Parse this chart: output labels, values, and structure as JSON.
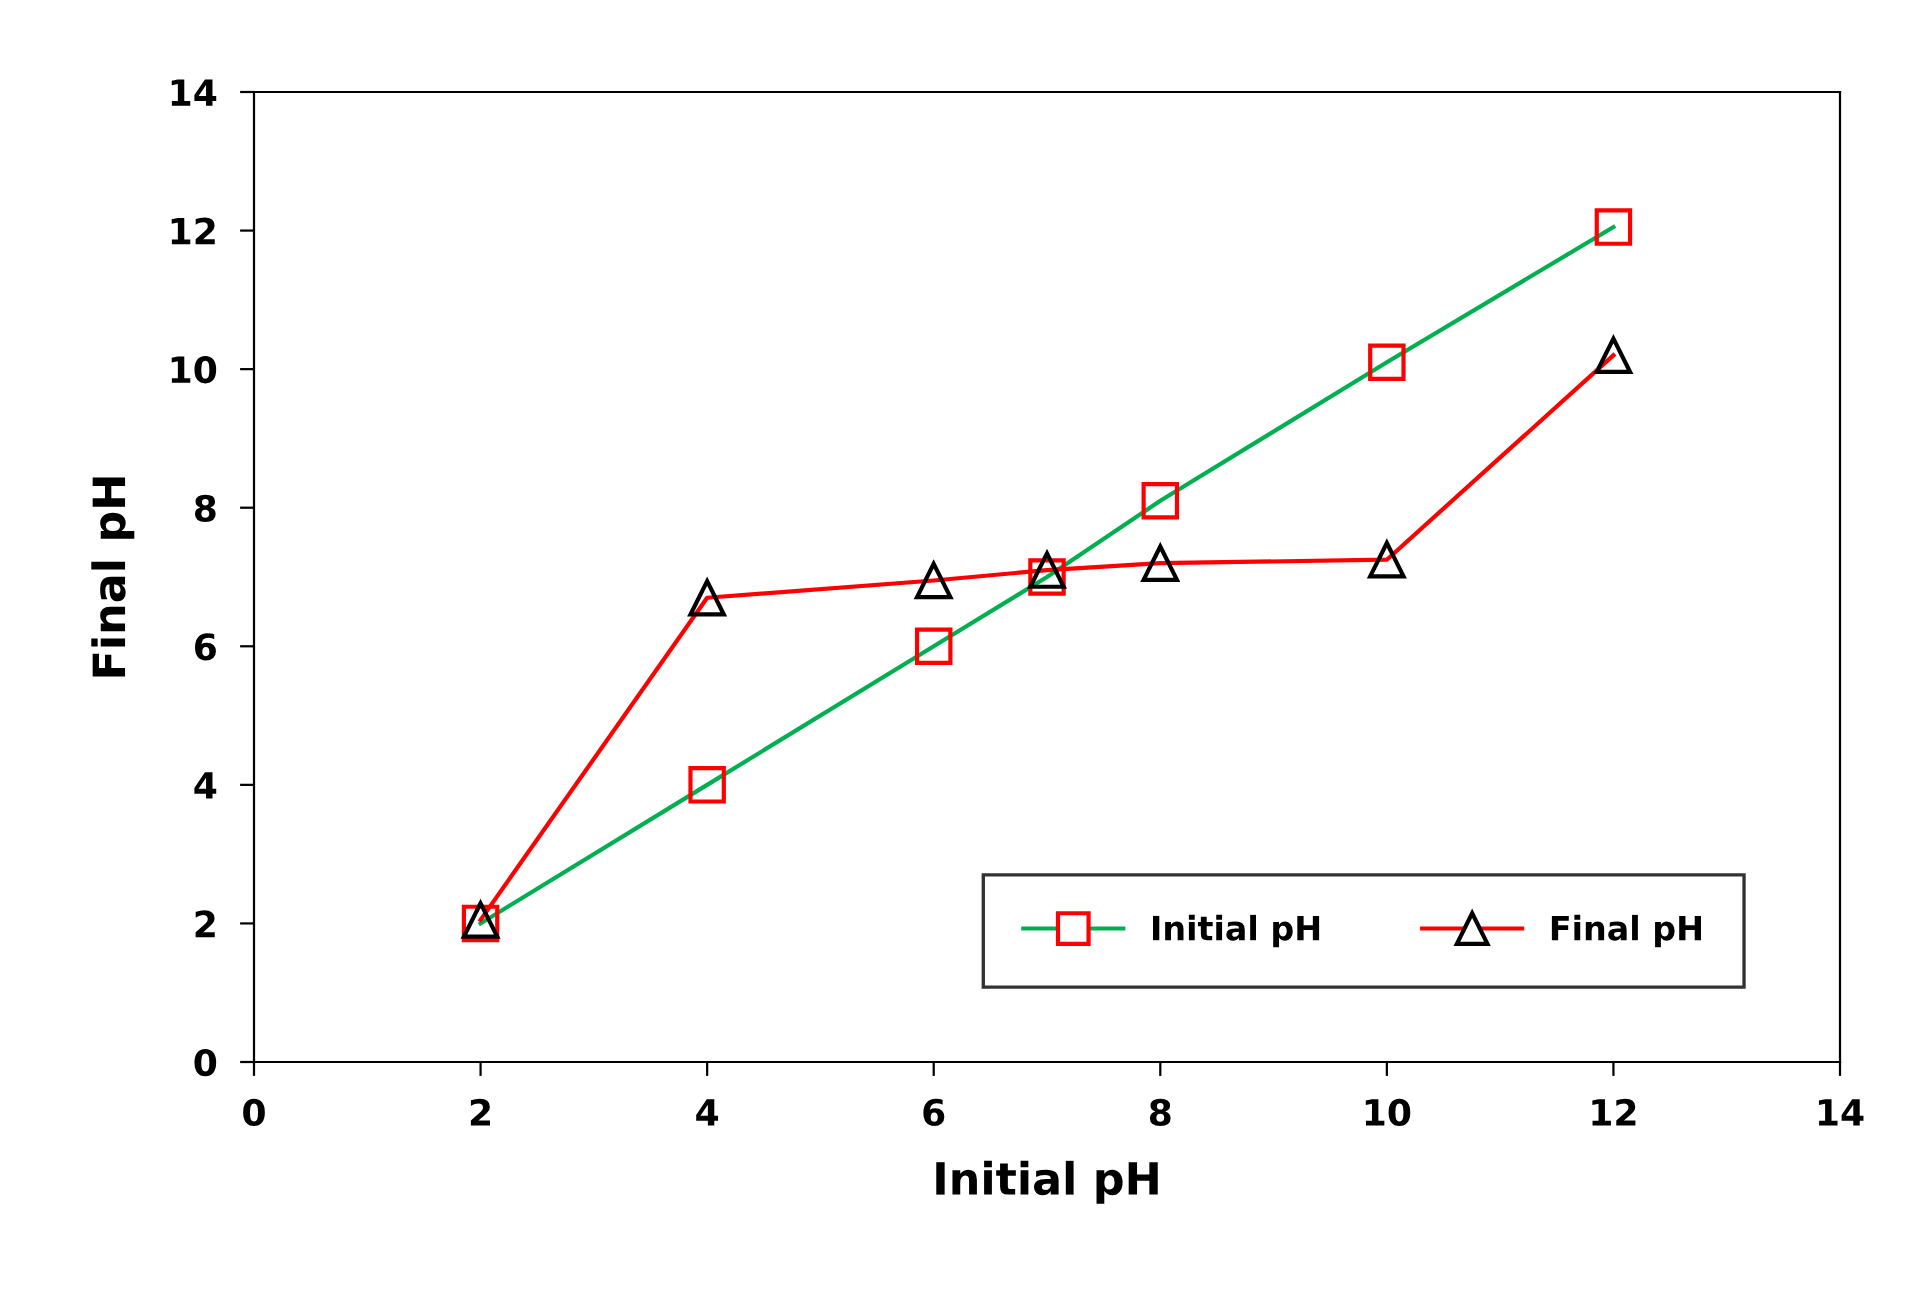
{
  "chart_data": {
    "type": "line",
    "xlabel": "Initial pH",
    "ylabel": "Final pH",
    "x": [
      2,
      4,
      6,
      7,
      8,
      10,
      12
    ],
    "series": [
      {
        "name": "Initial pH",
        "color": "#00b050",
        "colors": [
          "#ff0000",
          "#ff0000",
          "#ff0000",
          "#ff0000",
          "#ff0000",
          "#ff0000",
          "#ff0000"
        ],
        "marker": "square",
        "values": [
          2,
          4,
          6,
          7,
          8.1,
          10.1,
          12.05
        ]
      },
      {
        "name": "Final pH",
        "color": "#ff0000",
        "colors": [
          "#000000",
          "#000000",
          "#000000",
          "#000000",
          "#000000",
          "#000000",
          "#000000"
        ],
        "marker": "triangle",
        "values": [
          2.05,
          6.7,
          6.95,
          7.1,
          7.2,
          7.25,
          10.2
        ]
      }
    ],
    "xlim": [
      0,
      14
    ],
    "xticks": [
      0,
      2,
      4,
      6,
      8,
      10,
      12,
      14
    ],
    "ylim": [
      0,
      14
    ],
    "yticks": [
      0,
      2,
      4,
      6,
      8,
      10,
      12,
      14
    ],
    "grid": false,
    "legend": "bottom right",
    "line_style": "solid"
  }
}
